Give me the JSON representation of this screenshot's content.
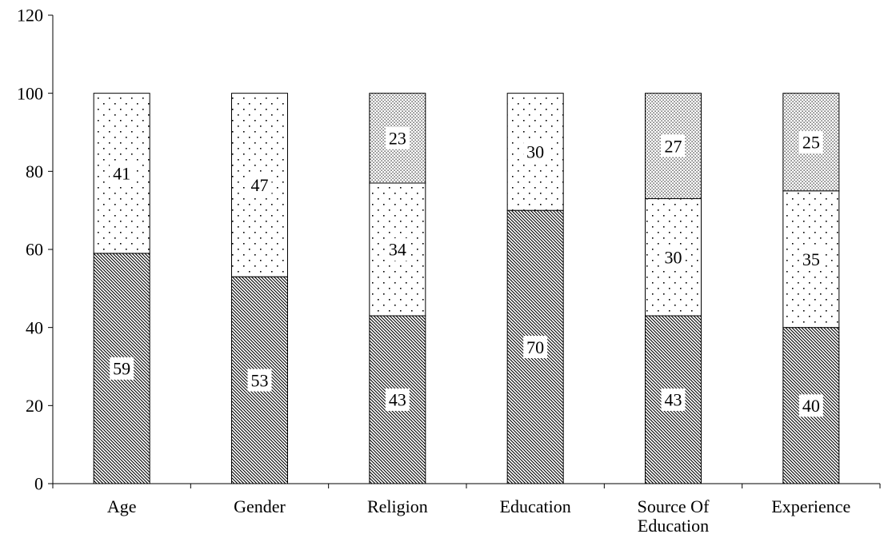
{
  "chart_data": {
    "type": "bar",
    "stacked": true,
    "categories": [
      [
        "Age"
      ],
      [
        "Gender"
      ],
      [
        "Religion"
      ],
      [
        "Education"
      ],
      [
        "Source Of",
        "Education"
      ],
      [
        "Experience"
      ]
    ],
    "series": [
      {
        "pattern": "diagonal-hatch",
        "values": [
          59,
          53,
          43,
          70,
          43,
          40
        ]
      },
      {
        "pattern": "sparse-dots",
        "values": [
          41,
          47,
          34,
          30,
          30,
          35
        ]
      },
      {
        "pattern": "dense-dots",
        "values": [
          0,
          0,
          23,
          0,
          27,
          25
        ]
      }
    ],
    "yticks": [
      0,
      20,
      40,
      60,
      80,
      100,
      120
    ],
    "ylim": [
      0,
      120
    ],
    "grid": false,
    "legend": "none"
  }
}
